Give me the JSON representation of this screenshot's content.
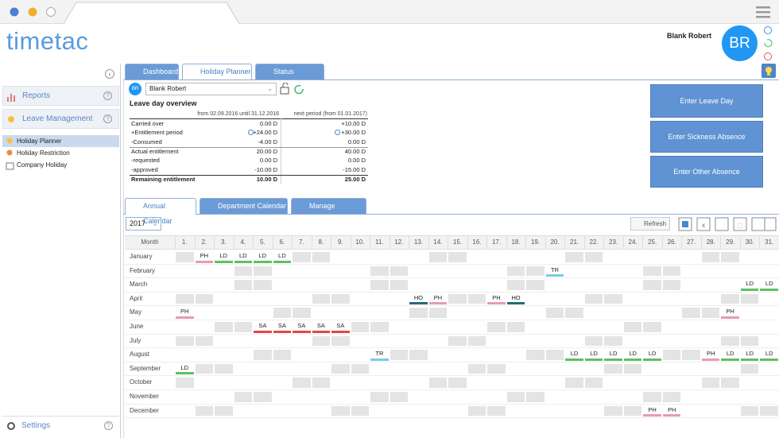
{
  "logo": "timetac",
  "user": {
    "name": "Blank Robert",
    "initials": "BR"
  },
  "sidebar": {
    "menu": [
      "Reports",
      "Leave Management"
    ],
    "submenu": [
      "Holiday Planner",
      "Holiday Restriction",
      "Company Holiday"
    ],
    "settings": "Settings"
  },
  "tabs": [
    "Dashboard",
    "Holiday Planner",
    "Status overview"
  ],
  "employee": {
    "initials": "BR",
    "name": "Blank Robert"
  },
  "overview": {
    "title": "Leave day overview",
    "columns": [
      "from 02.09.2016 until 31.12.2016",
      "next period (from 01.01.2017)"
    ],
    "rows": [
      [
        "Carried over",
        "0.00 D",
        "+10.00 D"
      ],
      [
        "+Entitlement period",
        "+24.00 D",
        "+30.00 D"
      ],
      [
        "-Consumed",
        "-4.00 D",
        "0.00 D"
      ],
      [
        "Actual entitlement",
        "20.00 D",
        "40.00 D"
      ],
      [
        "-requested",
        "0.00 D",
        "0.00 D"
      ],
      [
        "-approved",
        "-10.00 D",
        "-15.00 D"
      ],
      [
        "Remaining entitlement",
        "10.00 D",
        "25.00 D"
      ]
    ]
  },
  "actions": [
    "Enter Leave Day",
    "Enter Sickness Absence",
    "Enter Other Absence"
  ],
  "calendar_tabs": [
    "Annual Calendar",
    "Department Calendar",
    "Manage Requests"
  ],
  "calendar": {
    "year": "2017",
    "refresh": "Refresh",
    "month_header": "Month",
    "days": [
      "1.",
      "2.",
      "3.",
      "4.",
      "5.",
      "6.",
      "7.",
      "8.",
      "9.",
      "10.",
      "11.",
      "12.",
      "13.",
      "14.",
      "15.",
      "16.",
      "17.",
      "18.",
      "19.",
      "20.",
      "21.",
      "22.",
      "23.",
      "24.",
      "25.",
      "26.",
      "27.",
      "28.",
      "29.",
      "30.",
      "31."
    ],
    "months": [
      "January",
      "February",
      "March",
      "April",
      "May",
      "June",
      "July",
      "August",
      "September",
      "October",
      "November",
      "December"
    ],
    "colors": {
      "PH": "#e79ab6",
      "LD": "#5cc060",
      "TR": "#7cc8ea",
      "HO": "#236b7a",
      "SA": "#e0474c"
    },
    "entries": [
      {
        "month": 0,
        "day": 2,
        "code": "PH"
      },
      {
        "month": 0,
        "day": 3,
        "code": "LD"
      },
      {
        "month": 0,
        "day": 4,
        "code": "LD"
      },
      {
        "month": 0,
        "day": 5,
        "code": "LD"
      },
      {
        "month": 0,
        "day": 6,
        "code": "LD"
      },
      {
        "month": 1,
        "day": 20,
        "code": "TR"
      },
      {
        "month": 2,
        "day": 30,
        "code": "LD"
      },
      {
        "month": 2,
        "day": 31,
        "code": "LD"
      },
      {
        "month": 3,
        "day": 13,
        "code": "HO"
      },
      {
        "month": 3,
        "day": 14,
        "code": "PH"
      },
      {
        "month": 3,
        "day": 17,
        "code": "PH"
      },
      {
        "month": 3,
        "day": 18,
        "code": "HO"
      },
      {
        "month": 4,
        "day": 1,
        "code": "PH"
      },
      {
        "month": 4,
        "day": 29,
        "code": "PH"
      },
      {
        "month": 5,
        "day": 5,
        "code": "SA"
      },
      {
        "month": 5,
        "day": 6,
        "code": "SA"
      },
      {
        "month": 5,
        "day": 7,
        "code": "SA"
      },
      {
        "month": 5,
        "day": 8,
        "code": "SA"
      },
      {
        "month": 5,
        "day": 9,
        "code": "SA"
      },
      {
        "month": 7,
        "day": 11,
        "code": "TR"
      },
      {
        "month": 7,
        "day": 21,
        "code": "LD"
      },
      {
        "month": 7,
        "day": 22,
        "code": "LD"
      },
      {
        "month": 7,
        "day": 23,
        "code": "LD"
      },
      {
        "month": 7,
        "day": 24,
        "code": "LD"
      },
      {
        "month": 7,
        "day": 25,
        "code": "LD"
      },
      {
        "month": 7,
        "day": 28,
        "code": "PH"
      },
      {
        "month": 7,
        "day": 29,
        "code": "LD"
      },
      {
        "month": 7,
        "day": 30,
        "code": "LD"
      },
      {
        "month": 7,
        "day": 31,
        "code": "LD"
      },
      {
        "month": 8,
        "day": 1,
        "code": "LD"
      },
      {
        "month": 11,
        "day": 25,
        "code": "PH"
      },
      {
        "month": 11,
        "day": 26,
        "code": "PH"
      }
    ]
  }
}
